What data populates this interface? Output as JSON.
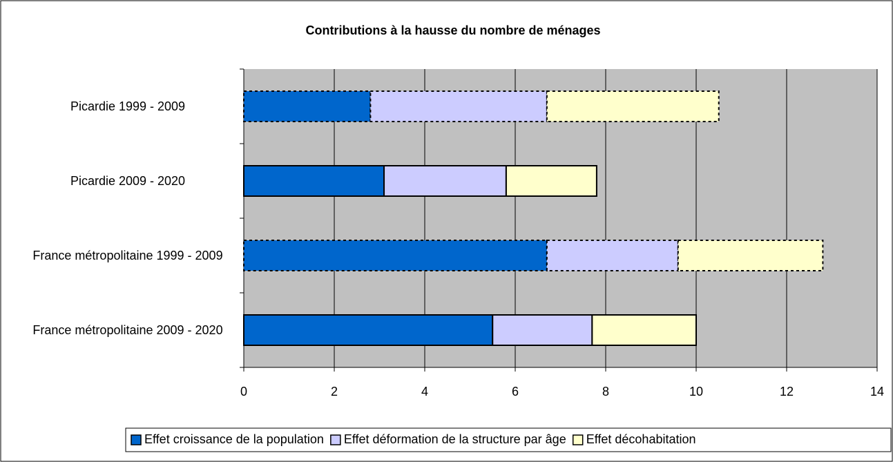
{
  "chart_data": {
    "type": "stacked-barh",
    "title": "Contributions à la hausse du nombre de ménages",
    "categories": [
      "Picardie 1999 - 2009",
      "Picardie 2009 - 2020",
      "France métropolitaine 1999 - 2009",
      "France métropolitaine 2009 - 2020"
    ],
    "border_styles": [
      "dashed",
      "solid",
      "dashed",
      "solid"
    ],
    "series": [
      {
        "name": "Effet croissance de la population",
        "color": "#0066cc",
        "values": [
          2.8,
          3.1,
          6.7,
          5.5
        ]
      },
      {
        "name": "Effet déformation de la structure par âge",
        "color": "#ccccff",
        "values": [
          3.9,
          2.7,
          2.9,
          2.2
        ]
      },
      {
        "name": "Effet décohabitation",
        "color": "#ffffcc",
        "values": [
          3.8,
          2.0,
          3.2,
          2.3
        ]
      }
    ],
    "xlim": [
      0,
      14
    ],
    "xticks": [
      0,
      2,
      4,
      6,
      8,
      10,
      12,
      14
    ],
    "grid": true,
    "legend": "bottom"
  }
}
